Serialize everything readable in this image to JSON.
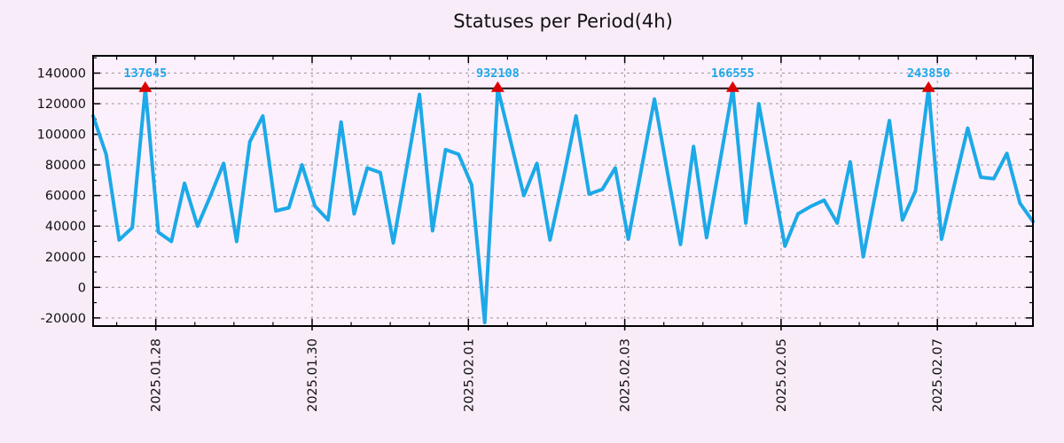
{
  "title": "Statuses per Period(4h)",
  "chart_data": {
    "type": "line",
    "title": "Statuses per Period(4h)",
    "period": "4h",
    "grid": true,
    "legend": "none",
    "series_name": "statuses",
    "series_color": "#1ca9e8",
    "marker_color": "#dd0000",
    "grid_color": "#999999",
    "background": "#f8ecf9",
    "plot_background": "#fcf0fc",
    "clip_line_value": 130000,
    "ylim": [
      -25300,
      151300
    ],
    "y_ticks": [
      -20000,
      0,
      20000,
      40000,
      60000,
      80000,
      100000,
      120000,
      140000
    ],
    "y_minor_step": 10000,
    "x_ticks": [
      "2025.01.28",
      "2025.01.30",
      "2025.02.01",
      "2025.02.03",
      "2025.02.05",
      "2025.02.07"
    ],
    "x_minor_ticks_per_day": 2,
    "values": [
      112000,
      87000,
      31000,
      39000,
      130000,
      36000,
      30000,
      68000,
      40000,
      60000,
      81000,
      30000,
      95000,
      112000,
      50000,
      52000,
      80000,
      53000,
      44000,
      108000,
      48000,
      78000,
      75000,
      29000,
      77000,
      126000,
      37000,
      90000,
      87000,
      67000,
      -23000,
      130000,
      95000,
      60000,
      81000,
      31000,
      70000,
      112000,
      61000,
      64000,
      78000,
      31500,
      77000,
      123000,
      75000,
      28000,
      92000,
      32500,
      81000,
      130000,
      42000,
      120000,
      73000,
      27000,
      48000,
      53000,
      57000,
      42000,
      82000,
      20000,
      64000,
      109000,
      44000,
      63000,
      130000,
      31500,
      68000,
      104000,
      72000,
      71000,
      87500,
      55000,
      43000
    ],
    "peaks": [
      {
        "index": 4,
        "label": "137645"
      },
      {
        "index": 31,
        "label": "932108"
      },
      {
        "index": 49,
        "label": "166555"
      },
      {
        "index": 64,
        "label": "243850"
      }
    ]
  }
}
